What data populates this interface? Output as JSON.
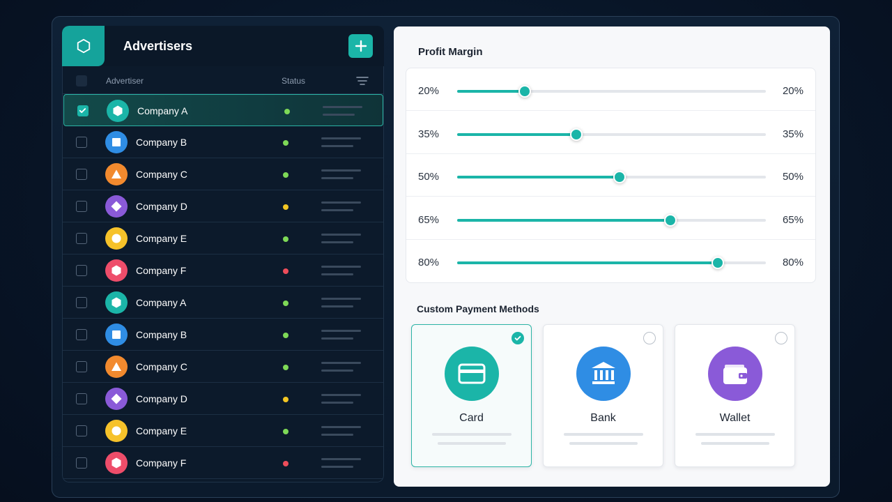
{
  "advertisers": {
    "title": "Advertisers",
    "add_icon": "plus-icon",
    "columns": {
      "advertiser": "Advertiser",
      "status": "Status",
      "filter_icon": "filter-lines-icon"
    },
    "rows": [
      {
        "name": "Company A",
        "checked": true,
        "avatar_color": "#1bb5a8",
        "shape": "hexagon",
        "status_color": "#7ed957"
      },
      {
        "name": "Company B",
        "checked": false,
        "avatar_color": "#2f8de4",
        "shape": "square",
        "status_color": "#7ed957"
      },
      {
        "name": "Company C",
        "checked": false,
        "avatar_color": "#f28a2e",
        "shape": "triangle",
        "status_color": "#7ed957"
      },
      {
        "name": "Company D",
        "checked": false,
        "avatar_color": "#8a5ad8",
        "shape": "diamond",
        "status_color": "#f3c623"
      },
      {
        "name": "Company E",
        "checked": false,
        "avatar_color": "#f6c22a",
        "shape": "circle",
        "status_color": "#7ed957"
      },
      {
        "name": "Company F",
        "checked": false,
        "avatar_color": "#ee4d6a",
        "shape": "hexagon",
        "status_color": "#ee4d5a"
      },
      {
        "name": "Company A",
        "checked": false,
        "avatar_color": "#1bb5a8",
        "shape": "hexagon",
        "status_color": "#7ed957"
      },
      {
        "name": "Company B",
        "checked": false,
        "avatar_color": "#2f8de4",
        "shape": "square",
        "status_color": "#7ed957"
      },
      {
        "name": "Company C",
        "checked": false,
        "avatar_color": "#f28a2e",
        "shape": "triangle",
        "status_color": "#7ed957"
      },
      {
        "name": "Company D",
        "checked": false,
        "avatar_color": "#8a5ad8",
        "shape": "diamond",
        "status_color": "#f3c623"
      },
      {
        "name": "Company E",
        "checked": false,
        "avatar_color": "#f6c22a",
        "shape": "circle",
        "status_color": "#7ed957"
      },
      {
        "name": "Company F",
        "checked": false,
        "avatar_color": "#ee4d6a",
        "shape": "hexagon",
        "status_color": "#ee4d5a"
      }
    ]
  },
  "profit_margin": {
    "title": "Profit Margin",
    "sliders": [
      {
        "left_label": "20%",
        "right_label": "20%",
        "level": 0.22
      },
      {
        "left_label": "35%",
        "right_label": "35%",
        "level": 0.385
      },
      {
        "left_label": "50%",
        "right_label": "50%",
        "level": 0.525
      },
      {
        "left_label": "65%",
        "right_label": "65%",
        "level": 0.69
      },
      {
        "left_label": "80%",
        "right_label": "80%",
        "level": 0.845
      }
    ]
  },
  "payment": {
    "title": "Custom Payment Methods",
    "methods": [
      {
        "name": "Card",
        "icon": "credit-card-icon",
        "color": "#1bb5a8",
        "selected": true
      },
      {
        "name": "Bank",
        "icon": "bank-icon",
        "color": "#2f8de4",
        "selected": false
      },
      {
        "name": "Wallet",
        "icon": "wallet-icon",
        "color": "#8a5ad8",
        "selected": false
      }
    ]
  },
  "theme": {
    "accent": "#1bb5a8"
  }
}
